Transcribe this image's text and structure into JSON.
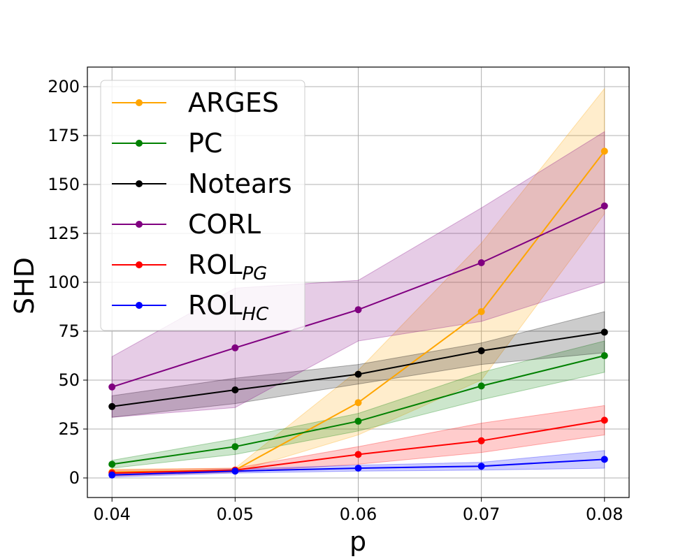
{
  "chart_data": {
    "type": "line",
    "title": "",
    "xlabel": "p",
    "ylabel": "SHD",
    "xlim": [
      0.038,
      0.082
    ],
    "ylim": [
      -10,
      210
    ],
    "grid": true,
    "legend_position": "top-left",
    "x": [
      0.04,
      0.05,
      0.06,
      0.07,
      0.08
    ],
    "xticks": [
      "0.04",
      "0.05",
      "0.06",
      "0.07",
      "0.08"
    ],
    "yticks": [
      "0",
      "25",
      "50",
      "75",
      "100",
      "125",
      "150",
      "175",
      "200"
    ],
    "ytick_values": [
      0,
      25,
      50,
      75,
      100,
      125,
      150,
      175,
      200
    ],
    "series": [
      {
        "name": "ARGES",
        "label_main": "ARGES",
        "label_sub": "",
        "color": "#FFA500",
        "values": [
          3,
          4,
          38.5,
          85,
          167
        ],
        "lower": [
          2,
          3,
          22,
          50,
          135
        ],
        "upper": [
          4.5,
          5,
          55,
          120,
          199
        ]
      },
      {
        "name": "PC",
        "label_main": "PC",
        "label_sub": "",
        "color": "#008000",
        "values": [
          7,
          16,
          29,
          47,
          62.5
        ],
        "lower": [
          5,
          12,
          24,
          40,
          54
        ],
        "upper": [
          9,
          20,
          33,
          54,
          70
        ]
      },
      {
        "name": "Notears",
        "label_main": "Notears",
        "label_sub": "",
        "color": "#000000",
        "values": [
          36.5,
          45,
          53,
          65,
          74.5
        ],
        "lower": [
          31,
          38,
          48,
          58,
          64
        ],
        "upper": [
          42,
          51,
          58,
          69,
          85
        ]
      },
      {
        "name": "CORL",
        "label_main": "CORL",
        "label_sub": "",
        "color": "#800080",
        "values": [
          46.5,
          66.5,
          86,
          110,
          139
        ],
        "lower": [
          31,
          36,
          70,
          80,
          100
        ],
        "upper": [
          62,
          97,
          101,
          138,
          177
        ]
      },
      {
        "name": "ROL_PG",
        "label_main": "ROL",
        "label_sub": "PG",
        "color": "#FF0000",
        "values": [
          2.5,
          4,
          12,
          19,
          29.5
        ],
        "lower": [
          1,
          3,
          7,
          13,
          22
        ],
        "upper": [
          4,
          5,
          16,
          28,
          37
        ]
      },
      {
        "name": "ROL_HC",
        "label_main": "ROL",
        "label_sub": "HC",
        "color": "#0000FF",
        "values": [
          1.5,
          3.5,
          5,
          6,
          9.5
        ],
        "lower": [
          0.5,
          2.5,
          3.5,
          4,
          5
        ],
        "upper": [
          2.5,
          4.5,
          6.5,
          8,
          14
        ]
      }
    ]
  }
}
